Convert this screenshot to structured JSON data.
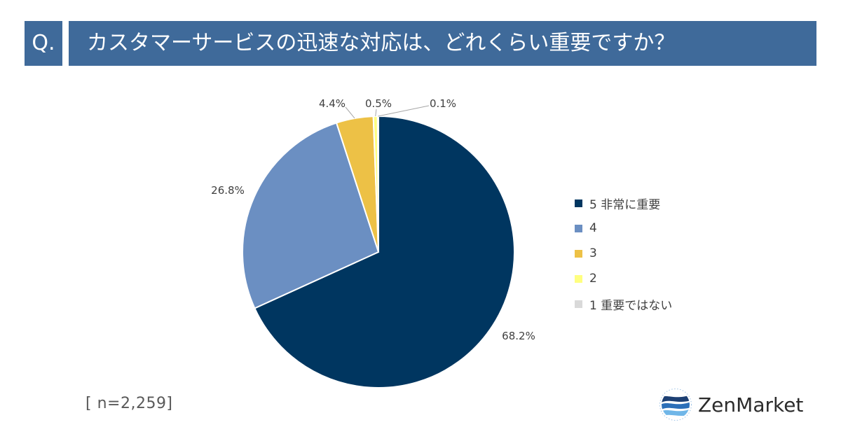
{
  "header": {
    "q_label": "Q.",
    "title": "カスタマーサービスの迅速な対応は、どれくらい重要ですか？"
  },
  "chart_data": {
    "type": "pie",
    "categories": [
      "5 非常に重要",
      "4",
      "3",
      "2",
      "1 重要ではない"
    ],
    "values": [
      68.2,
      26.8,
      4.4,
      0.5,
      0.1
    ],
    "labels": [
      "68.2%",
      "26.8%",
      "4.4%",
      "0.5%",
      "0.1%"
    ],
    "colors": [
      "#003660",
      "#6b8fc2",
      "#edc146",
      "#ffff80",
      "#d9d9d9"
    ],
    "start_angle_deg": 0,
    "direction": "clockwise",
    "legend_position": "right"
  },
  "sample_note": "[ n=2,259]",
  "logo": {
    "text": "ZenMarket",
    "icon": "zenmarket-globe-icon"
  }
}
